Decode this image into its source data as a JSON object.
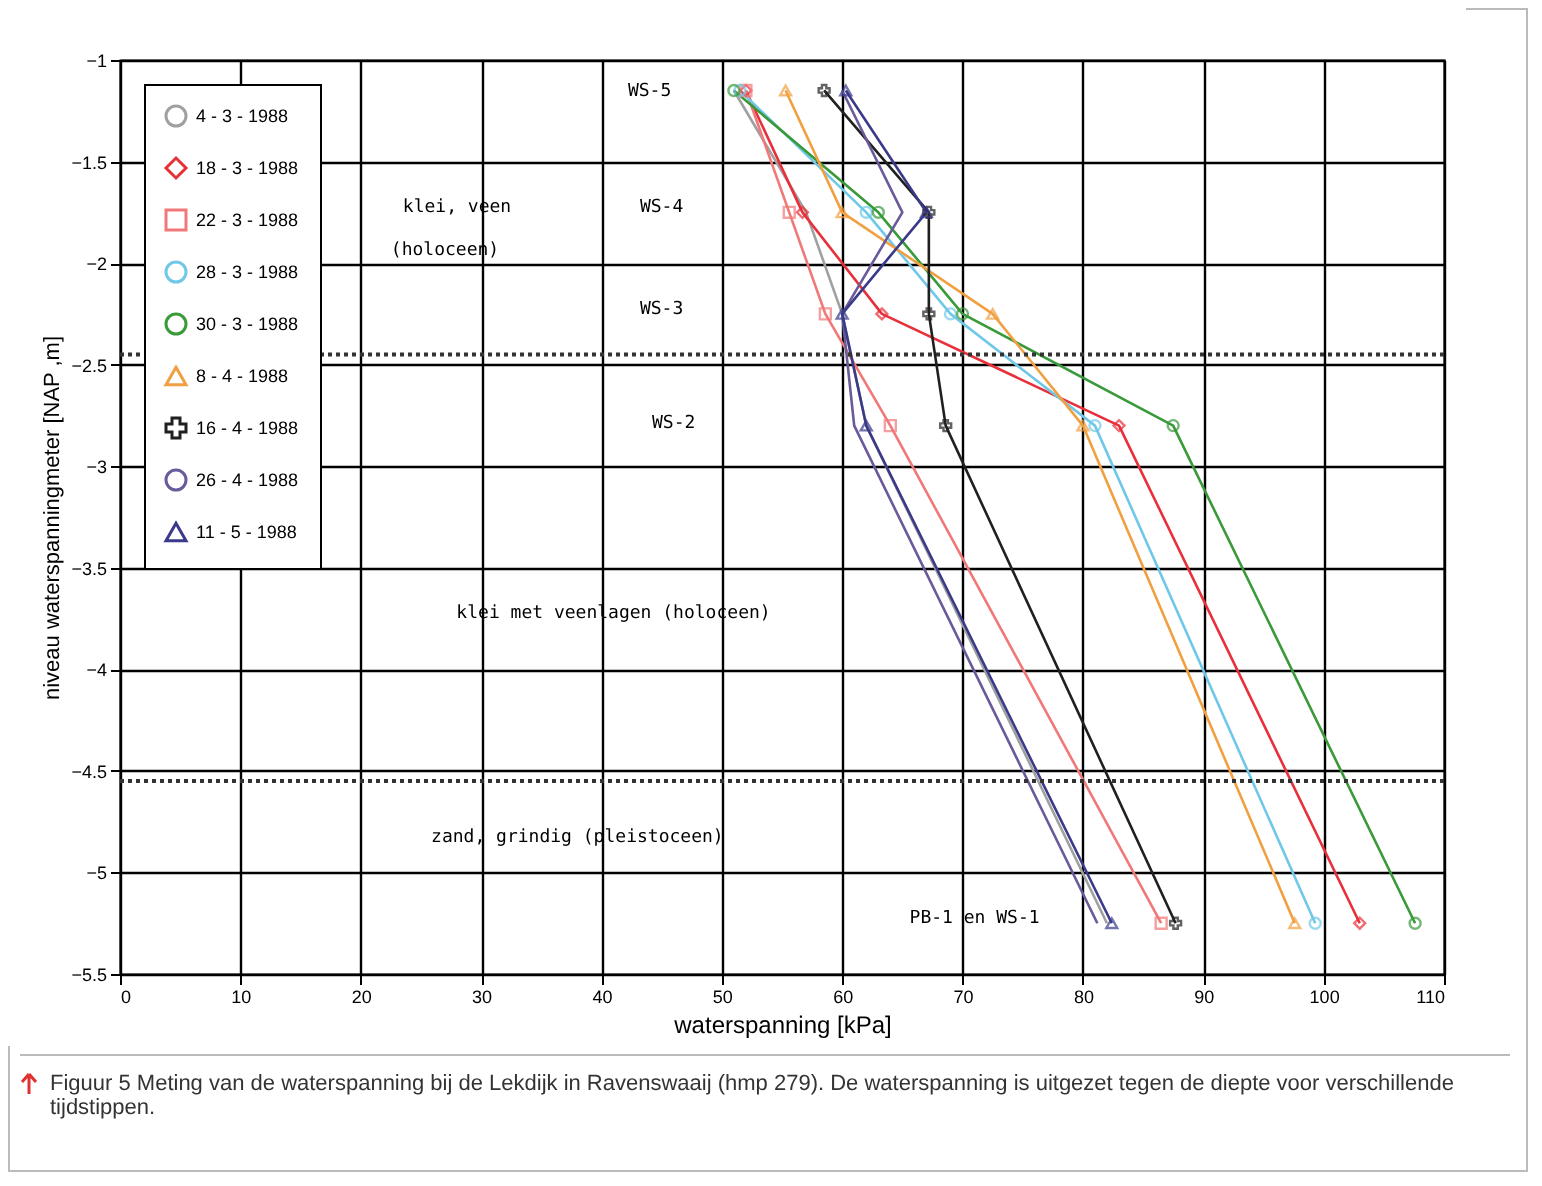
{
  "chart_data": {
    "type": "line",
    "xlabel": "waterspanning [kPa]",
    "ylabel": "niveau waterspanningmeter [NAP ,m]",
    "xlim": [
      0,
      110
    ],
    "xticks": [
      0,
      10,
      20,
      30,
      40,
      50,
      60,
      70,
      80,
      90,
      100,
      110
    ],
    "ylim": [
      -5.5,
      -1
    ],
    "yticks": [
      -5.5,
      -5,
      -4.5,
      -4,
      -3.5,
      -3,
      -2.5,
      -2,
      -1.5,
      -1
    ],
    "grid": true,
    "legend": "top left",
    "series": [
      {
        "name": "4 - 3 - 1988",
        "color": "#a0a0a0",
        "marker": "none",
        "x": [
          51,
          57,
          60,
          62,
          82
        ],
        "values": [
          -1.15,
          -1.75,
          -2.25,
          -2.8,
          -5.25
        ]
      },
      {
        "name": "18 - 3 - 1988",
        "color": "#e8303a",
        "marker": "diamond",
        "x": [
          52,
          56.7,
          63.3,
          83,
          103
        ],
        "values": [
          -1.15,
          -1.75,
          -2.25,
          -2.8,
          -5.25
        ]
      },
      {
        "name": "22 - 3 - 1988",
        "color": "#f07878",
        "marker": "square",
        "x": [
          52,
          55.6,
          58.6,
          64,
          86.5
        ],
        "values": [
          -1.15,
          -1.75,
          -2.25,
          -2.8,
          -5.25
        ]
      },
      {
        "name": "28 - 3 - 1988",
        "color": "#70c8e8",
        "marker": "circle",
        "x": [
          51.5,
          62,
          69,
          81,
          99.3
        ],
        "values": [
          -1.15,
          -1.75,
          -2.25,
          -2.8,
          -5.25
        ]
      },
      {
        "name": "30 - 3 - 1988",
        "color": "#3a9a3a",
        "marker": "circle",
        "x": [
          51,
          63,
          70,
          87.5,
          107.6
        ],
        "values": [
          -1.15,
          -1.75,
          -2.25,
          -2.8,
          -5.25
        ]
      },
      {
        "name": "8 - 4 - 1988",
        "color": "#f0a040",
        "marker": "triangle",
        "x": [
          55.3,
          60,
          72.5,
          80,
          97.6
        ],
        "values": [
          -1.15,
          -1.75,
          -2.25,
          -2.8,
          -5.25
        ]
      },
      {
        "name": "16 - 4 - 1988",
        "color": "#202020",
        "marker": "cross",
        "x": [
          58.5,
          67.2,
          67.2,
          68.6,
          87.7
        ],
        "values": [
          -1.15,
          -1.75,
          -2.25,
          -2.8,
          -5.25
        ]
      },
      {
        "name": "26 - 4 - 1988",
        "color": "#6a5a9a",
        "marker": "none",
        "x": [
          60,
          65,
          60,
          61,
          81.2
        ],
        "values": [
          -1.15,
          -1.75,
          -2.25,
          -2.8,
          -5.25
        ]
      },
      {
        "name": "11 - 5 - 1988",
        "color": "#3a3a8a",
        "marker": "triangle",
        "x": [
          60.3,
          67,
          60,
          62,
          82.4
        ],
        "values": [
          -1.15,
          -1.75,
          -2.25,
          -2.8,
          -5.25
        ]
      }
    ],
    "ref_lines": [
      {
        "axis": "y",
        "value": -2.45,
        "line_style": "dotted",
        "color": "#333333"
      },
      {
        "axis": "y",
        "value": -4.55,
        "line_style": "dotted",
        "color": "#333333"
      }
    ],
    "annotations": [
      "WS-5",
      "WS-4",
      "WS-3",
      "WS-2",
      "PB-1 en WS-1",
      "klei, veen",
      "(holoceen)",
      "klei met veenlagen (holoceen)",
      "zand, grindig (pleistoceen)",
      "Figuur 5 Meting van de waterspanning bij de Lekdijk in Ravenswaaij (hmp 279). De waterspanning is uitgezet tegen de diepte voor verschillende tijdstippen."
    ]
  }
}
